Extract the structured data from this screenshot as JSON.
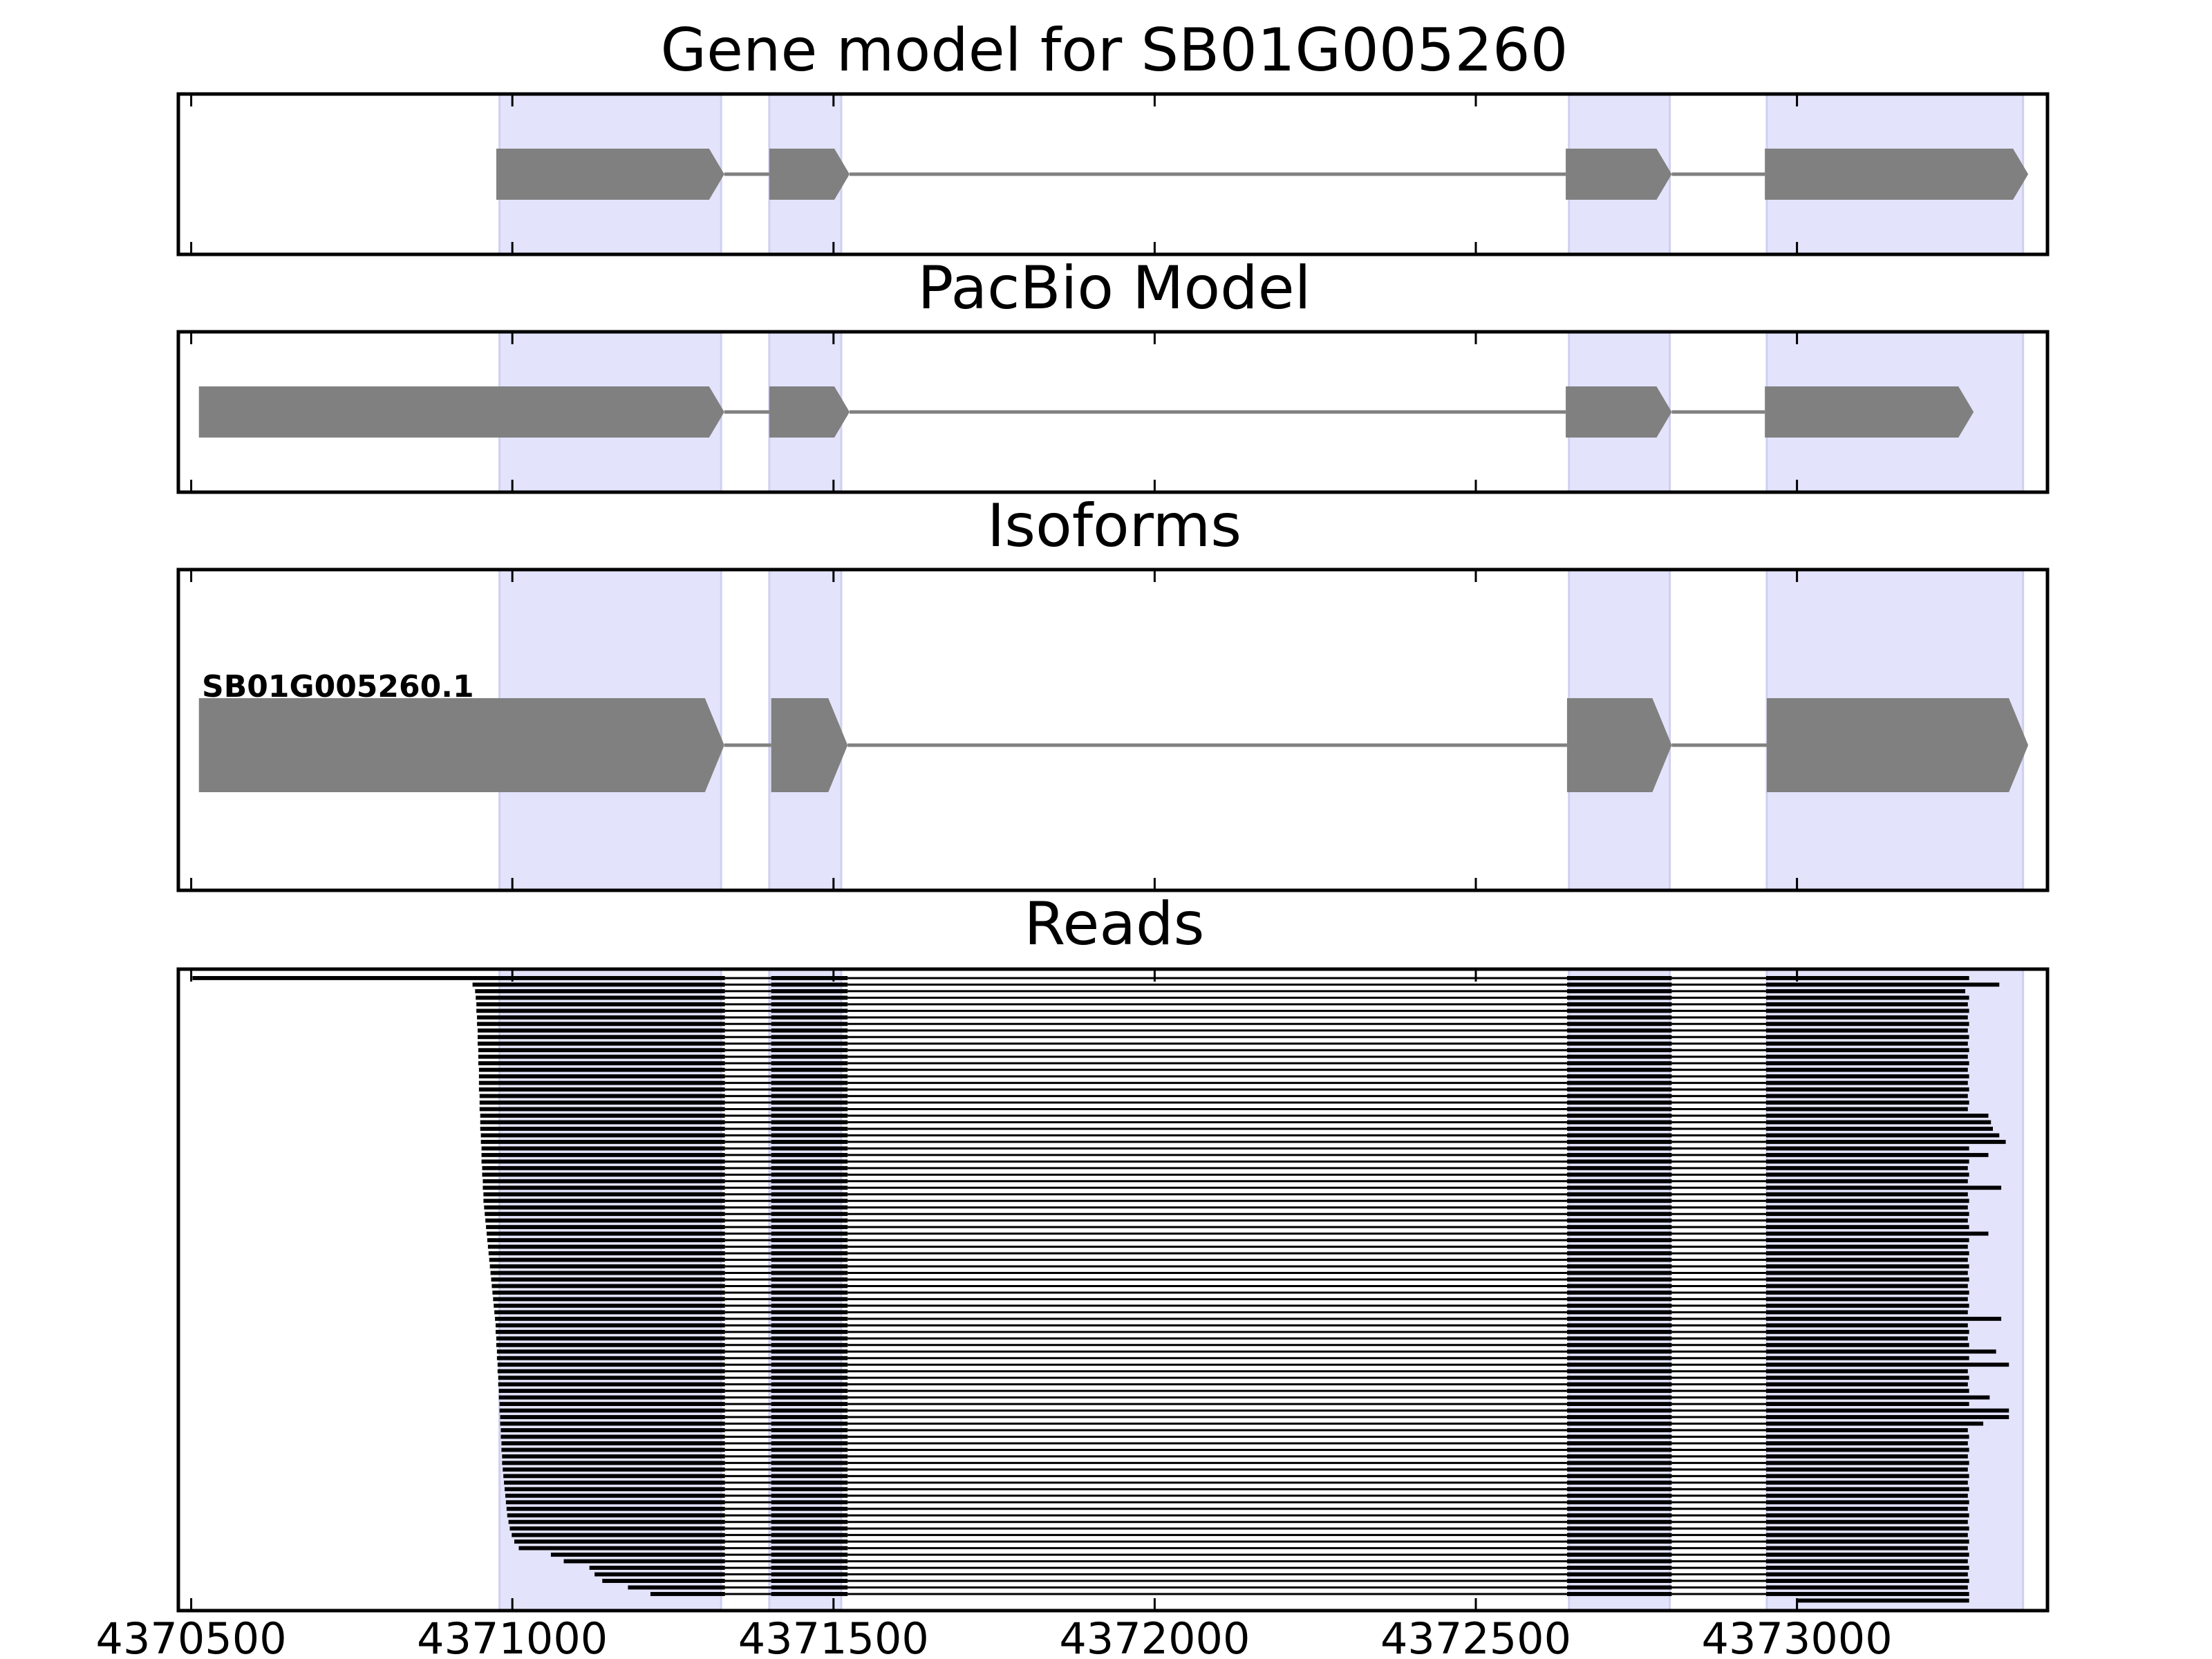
{
  "chart_data": {
    "type": "gene-track",
    "x_range": [
      4370480,
      4373390
    ],
    "x_ticks": [
      {
        "value": 4370500,
        "label": "4370500"
      },
      {
        "value": 4371000,
        "label": "4371000"
      },
      {
        "value": 4371500,
        "label": "4371500"
      },
      {
        "value": 4372000,
        "label": "4372000"
      },
      {
        "value": 4372500,
        "label": "4372500"
      },
      {
        "value": 4373000,
        "label": "4373000"
      }
    ],
    "exon_highlight_color": "#e3e3fb",
    "feature_color": "#808080",
    "read_color": "#000000",
    "highlight_regions": [
      [
        4370980,
        4371325
      ],
      [
        4371400,
        4371512
      ],
      [
        4372645,
        4372802
      ],
      [
        4372953,
        4373352
      ]
    ],
    "panels": [
      {
        "key": "gene_model",
        "title": "Gene model for SB01G005260",
        "features": [
          {
            "exons": [
              [
                4370975,
                4371330
              ],
              [
                4371400,
                4371525
              ],
              [
                4372640,
                4372805
              ],
              [
                4372950,
                4373360
              ]
            ],
            "strand": "+"
          }
        ]
      },
      {
        "key": "pacbio",
        "title": "PacBio Model",
        "features": [
          {
            "exons": [
              [
                4370512,
                4371330
              ],
              [
                4371400,
                4371525
              ],
              [
                4372640,
                4372805
              ],
              [
                4372950,
                4373275
              ]
            ],
            "strand": "+"
          }
        ]
      },
      {
        "key": "isoforms",
        "title": "Isoforms",
        "features": [
          {
            "label": "SB01G005260.1",
            "exons": [
              [
                4370512,
                4371330
              ],
              [
                4371403,
                4371522
              ],
              [
                4372642,
                4372805
              ],
              [
                4372953,
                4373360
              ]
            ],
            "strand": "+"
          }
        ]
      },
      {
        "key": "reads",
        "title": "Reads",
        "read_count": 96,
        "read_introns": [
          [
            4371331,
            4371403
          ],
          [
            4371522,
            4372642
          ],
          [
            4372805,
            4372952
          ]
        ],
        "read_ends": [
          4373268,
          4373315,
          4373262,
          4373268,
          4373266,
          4373268,
          4373266,
          4373268,
          4373266,
          4373268,
          4373266,
          4373268,
          4373266,
          4373268,
          4373266,
          4373268,
          4373266,
          4373268,
          4373266,
          4373268,
          4373266,
          4373298,
          4373302,
          4373305,
          4373315,
          4373325,
          4373268,
          4373298,
          4373268,
          4373266,
          4373268,
          4373266,
          4373318,
          4373266,
          4373268,
          4373266,
          4373268,
          4373266,
          4373268,
          4373298,
          4373268,
          4373266,
          4373268,
          4373266,
          4373268,
          4373266,
          4373268,
          4373266,
          4373268,
          4373266,
          4373268,
          4373266,
          4373318,
          4373266,
          4373268,
          4373266,
          4373268,
          4373310,
          4373268,
          4373330,
          4373266,
          4373268,
          4373266,
          4373268,
          4373300,
          4373268,
          4373330,
          4373330,
          4373290,
          4373266,
          4373268,
          4373266,
          4373268,
          4373266,
          4373268,
          4373266,
          4373268,
          4373266,
          4373268,
          4373266,
          4373268,
          4373266,
          4373268,
          4373266,
          4373268,
          4373266,
          4373268,
          4373266,
          4373268,
          4373266,
          4373268,
          4373266,
          4373268,
          4373266,
          4373268,
          4373268
        ],
        "read_starts": [
          4370502,
          4370938,
          4370942,
          4370943,
          4370944,
          4370944,
          4370945,
          4370945,
          4370946,
          4370946,
          4370946,
          4370947,
          4370947,
          4370947,
          4370948,
          4370948,
          4370948,
          4370948,
          4370949,
          4370949,
          4370949,
          4370950,
          4370950,
          4370950,
          4370951,
          4370951,
          4370952,
          4370952,
          4370952,
          4370953,
          4370953,
          4370954,
          4370954,
          4370955,
          4370955,
          4370956,
          4370957,
          4370958,
          4370959,
          4370960,
          4370961,
          4370962,
          4370963,
          4370964,
          4370965,
          4370966,
          4370967,
          4370968,
          4370969,
          4370970,
          4370971,
          4370972,
          4370973,
          4370974,
          4370974,
          4370975,
          4370975,
          4370976,
          4370976,
          4370977,
          4370977,
          4370978,
          4370978,
          4370979,
          4370979,
          4370980,
          4370980,
          4370981,
          4370981,
          4370982,
          4370982,
          4370983,
          4370983,
          4370984,
          4370984,
          4370985,
          4370986,
          4370987,
          4370988,
          4370989,
          4370990,
          4370991,
          4370992,
          4370994,
          4370996,
          4370999,
          4371003,
          4371010,
          4371060,
          4371080,
          4371120,
          4371128,
          4371140,
          4371180,
          4371215,
          4373000
        ]
      }
    ]
  }
}
